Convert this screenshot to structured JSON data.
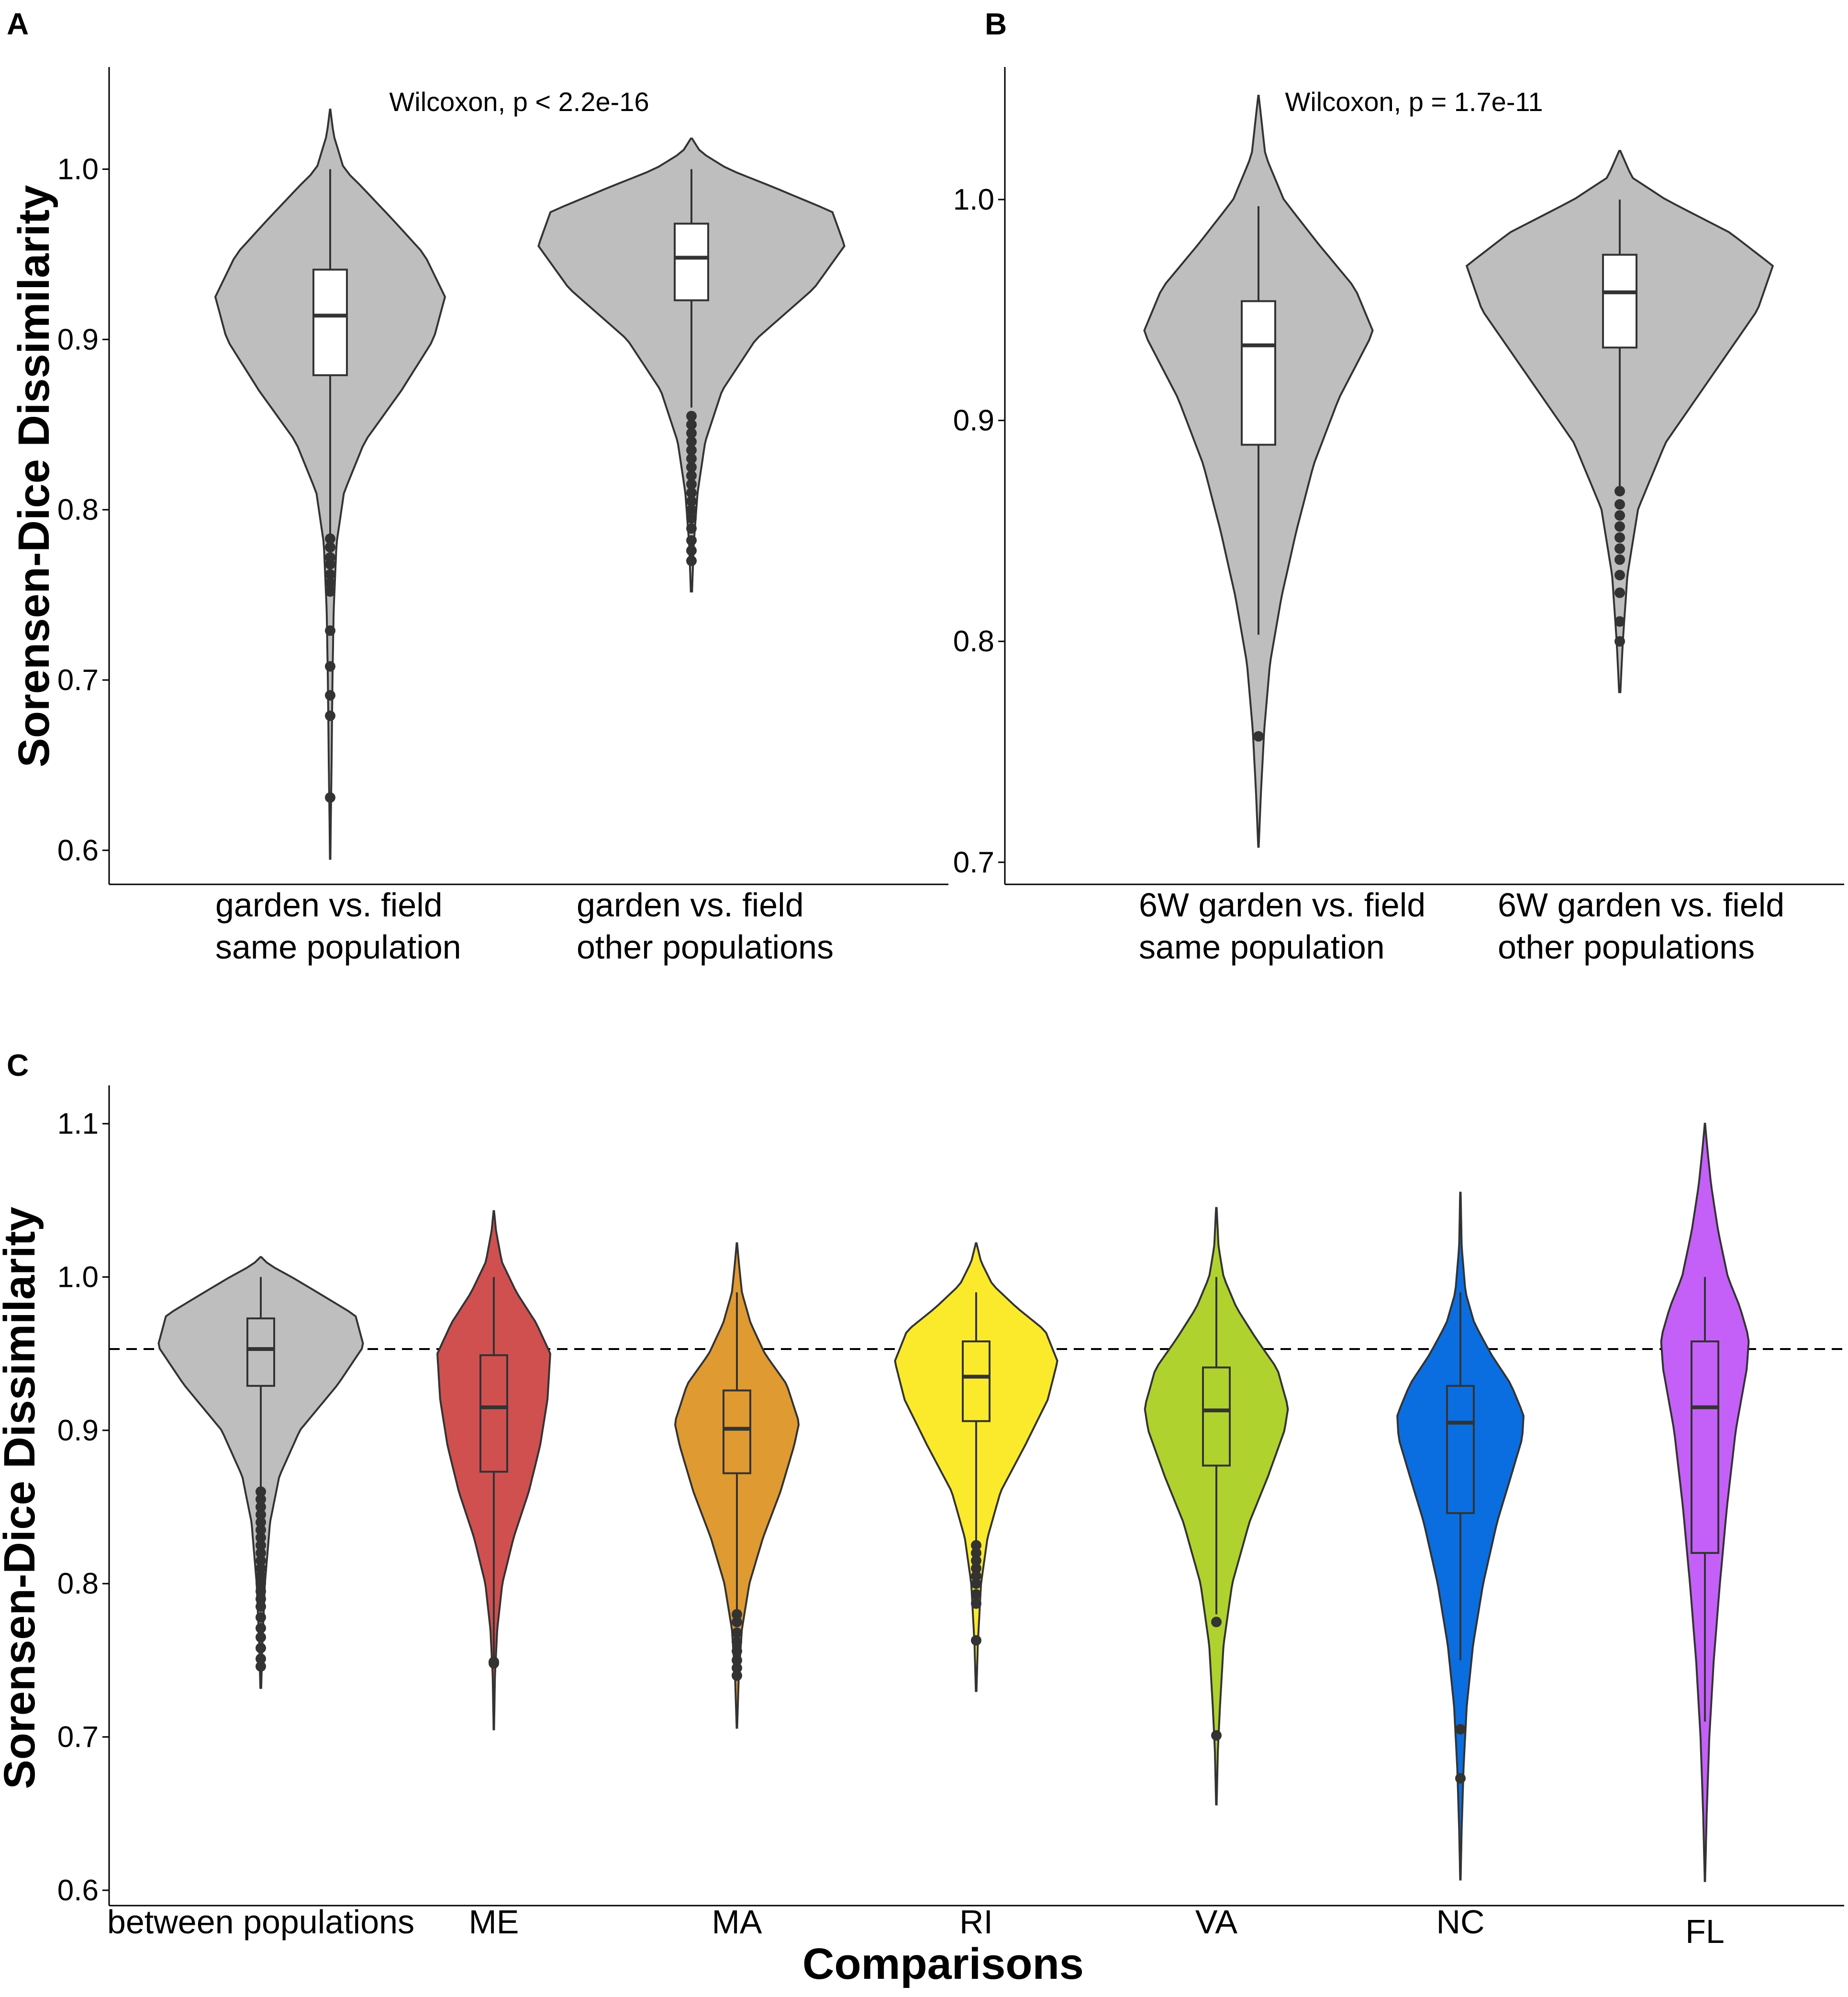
{
  "colors": {
    "violin_default": "#bebebe",
    "outline": "#333333",
    "box_fill": "#ffffff",
    "ME": "#d05050",
    "MA": "#e09a32",
    "RI": "#fbea2c",
    "VA": "#b0d22e",
    "NC": "#0a6ee0",
    "FL": "#c460f8"
  },
  "chart_data": [
    {
      "panel": "A",
      "type": "violin",
      "ylabel": "Sorensen-Dice Dissimilarity",
      "xlabel": "",
      "ylim": [
        0.58,
        1.06
      ],
      "yticks": [
        "0.6",
        "0.7",
        "0.8",
        "0.9",
        "1.0"
      ],
      "annotation": "Wilcoxon, p < 2.2e-16",
      "groups": [
        {
          "label_lines": [
            "garden vs. field",
            "same population"
          ],
          "color": "violin_default",
          "min": 0.595,
          "max": 1.035,
          "whisker_low": 0.785,
          "whisker_high": 1.0,
          "q1": 0.879,
          "median": 0.914,
          "q3": 0.941,
          "outliers": [
            0.783,
            0.778,
            0.772,
            0.768,
            0.762,
            0.757,
            0.752,
            0.729,
            0.708,
            0.691,
            0.679,
            0.631
          ],
          "profile": [
            [
              0.595,
              0.002
            ],
            [
              0.62,
              0.006
            ],
            [
              0.65,
              0.012
            ],
            [
              0.7,
              0.02
            ],
            [
              0.74,
              0.03
            ],
            [
              0.78,
              0.055
            ],
            [
              0.81,
              0.12
            ],
            [
              0.84,
              0.3
            ],
            [
              0.87,
              0.62
            ],
            [
              0.9,
              0.9
            ],
            [
              0.925,
              1.0
            ],
            [
              0.95,
              0.82
            ],
            [
              0.97,
              0.55
            ],
            [
              0.99,
              0.27
            ],
            [
              1.0,
              0.12
            ],
            [
              1.02,
              0.03
            ],
            [
              1.035,
              0.002
            ]
          ]
        },
        {
          "label_lines": [
            "garden vs. field",
            "other populations"
          ],
          "color": "violin_default",
          "min": 0.752,
          "max": 1.018,
          "whisker_low": 0.86,
          "whisker_high": 1.0,
          "q1": 0.923,
          "median": 0.948,
          "q3": 0.968,
          "outliers": [
            0.855,
            0.85,
            0.845,
            0.84,
            0.835,
            0.83,
            0.825,
            0.82,
            0.815,
            0.81,
            0.805,
            0.8,
            0.795,
            0.789,
            0.782,
            0.776,
            0.77
          ],
          "profile": [
            [
              0.752,
              0.004
            ],
            [
              0.78,
              0.015
            ],
            [
              0.81,
              0.04
            ],
            [
              0.84,
              0.09
            ],
            [
              0.87,
              0.2
            ],
            [
              0.9,
              0.42
            ],
            [
              0.93,
              0.8
            ],
            [
              0.955,
              1.0
            ],
            [
              0.975,
              0.92
            ],
            [
              0.99,
              0.52
            ],
            [
              1.0,
              0.24
            ],
            [
              1.01,
              0.06
            ],
            [
              1.018,
              0.004
            ]
          ]
        }
      ]
    },
    {
      "panel": "B",
      "type": "violin",
      "ylabel": "",
      "xlabel": "",
      "ylim": [
        0.69,
        1.06
      ],
      "yticks": [
        "0.7",
        "0.8",
        "0.9",
        "1.0"
      ],
      "annotation": "Wilcoxon, p = 1.7e-11",
      "groups": [
        {
          "label_lines": [
            "6W garden vs. field",
            "same population"
          ],
          "color": "violin_default",
          "min": 0.707,
          "max": 1.047,
          "whisker_low": 0.803,
          "whisker_high": 0.997,
          "q1": 0.889,
          "median": 0.934,
          "q3": 0.954,
          "outliers": [
            0.757
          ],
          "profile": [
            [
              0.707,
              0.002
            ],
            [
              0.73,
              0.02
            ],
            [
              0.76,
              0.05
            ],
            [
              0.79,
              0.1
            ],
            [
              0.82,
              0.2
            ],
            [
              0.85,
              0.33
            ],
            [
              0.88,
              0.48
            ],
            [
              0.91,
              0.7
            ],
            [
              0.94,
              1.0
            ],
            [
              0.96,
              0.84
            ],
            [
              0.98,
              0.52
            ],
            [
              1.0,
              0.22
            ],
            [
              1.02,
              0.06
            ],
            [
              1.047,
              0.002
            ]
          ]
        },
        {
          "label_lines": [
            "6W garden vs. field",
            "other populations"
          ],
          "color": "violin_default",
          "min": 0.777,
          "max": 1.022,
          "whisker_low": 0.87,
          "whisker_high": 1.0,
          "q1": 0.933,
          "median": 0.958,
          "q3": 0.975,
          "outliers": [
            0.868,
            0.862,
            0.857,
            0.852,
            0.847,
            0.842,
            0.837,
            0.83,
            0.822,
            0.809,
            0.8
          ],
          "profile": [
            [
              0.777,
              0.004
            ],
            [
              0.8,
              0.02
            ],
            [
              0.83,
              0.05
            ],
            [
              0.86,
              0.12
            ],
            [
              0.89,
              0.3
            ],
            [
              0.92,
              0.6
            ],
            [
              0.95,
              0.9
            ],
            [
              0.97,
              1.0
            ],
            [
              0.985,
              0.72
            ],
            [
              1.0,
              0.3
            ],
            [
              1.01,
              0.08
            ],
            [
              1.022,
              0.004
            ]
          ]
        }
      ]
    },
    {
      "panel": "C",
      "type": "violin",
      "ylabel": "Sorensen-Dice Dissimilarity",
      "xlabel": "Comparisons",
      "ylim": [
        0.59,
        1.125
      ],
      "yticks": [
        "0.6",
        "0.7",
        "0.8",
        "0.9",
        "1.0",
        "1.1"
      ],
      "reference_line": 0.953,
      "groups": [
        {
          "label_lines": [
            "between populations"
          ],
          "color": "violin_default",
          "min": 0.732,
          "max": 1.013,
          "whisker_low": 0.862,
          "whisker_high": 1.0,
          "q1": 0.929,
          "median": 0.953,
          "q3": 0.973,
          "outliers": [
            0.86,
            0.855,
            0.85,
            0.845,
            0.84,
            0.835,
            0.83,
            0.825,
            0.82,
            0.815,
            0.81,
            0.805,
            0.8,
            0.795,
            0.79,
            0.785,
            0.778,
            0.771,
            0.765,
            0.758,
            0.751,
            0.746
          ],
          "profile": [
            [
              0.732,
              0.004
            ],
            [
              0.76,
              0.015
            ],
            [
              0.8,
              0.04
            ],
            [
              0.84,
              0.09
            ],
            [
              0.87,
              0.18
            ],
            [
              0.9,
              0.38
            ],
            [
              0.93,
              0.75
            ],
            [
              0.955,
              1.0
            ],
            [
              0.975,
              0.92
            ],
            [
              0.99,
              0.55
            ],
            [
              1.0,
              0.3
            ],
            [
              1.008,
              0.08
            ],
            [
              1.013,
              0.004
            ]
          ]
        },
        {
          "label_lines": [
            "ME"
          ],
          "color": "ME",
          "min": 0.705,
          "max": 1.043,
          "whisker_low": 0.75,
          "whisker_high": 1.0,
          "q1": 0.873,
          "median": 0.915,
          "q3": 0.949,
          "outliers": [
            0.749,
            0.748
          ],
          "profile": [
            [
              0.705,
              0.004
            ],
            [
              0.74,
              0.02
            ],
            [
              0.77,
              0.06
            ],
            [
              0.8,
              0.15
            ],
            [
              0.83,
              0.35
            ],
            [
              0.86,
              0.62
            ],
            [
              0.89,
              0.82
            ],
            [
              0.92,
              0.95
            ],
            [
              0.95,
              1.0
            ],
            [
              0.97,
              0.75
            ],
            [
              0.99,
              0.4
            ],
            [
              1.01,
              0.14
            ],
            [
              1.03,
              0.04
            ],
            [
              1.043,
              0.004
            ]
          ]
        },
        {
          "label_lines": [
            "MA"
          ],
          "color": "MA",
          "min": 0.706,
          "max": 1.022,
          "whisker_low": 0.78,
          "whisker_high": 0.99,
          "q1": 0.872,
          "median": 0.901,
          "q3": 0.926,
          "outliers": [
            0.78,
            0.775,
            0.768,
            0.762,
            0.756,
            0.75,
            0.745,
            0.74
          ],
          "profile": [
            [
              0.706,
              0.004
            ],
            [
              0.74,
              0.03
            ],
            [
              0.77,
              0.08
            ],
            [
              0.8,
              0.2
            ],
            [
              0.83,
              0.42
            ],
            [
              0.86,
              0.7
            ],
            [
              0.89,
              0.92
            ],
            [
              0.905,
              1.0
            ],
            [
              0.93,
              0.8
            ],
            [
              0.95,
              0.45
            ],
            [
              0.97,
              0.22
            ],
            [
              0.99,
              0.08
            ],
            [
              1.01,
              0.03
            ],
            [
              1.022,
              0.004
            ]
          ]
        },
        {
          "label_lines": [
            "RI"
          ],
          "color": "RI",
          "min": 0.73,
          "max": 1.022,
          "whisker_low": 0.825,
          "whisker_high": 0.99,
          "q1": 0.906,
          "median": 0.935,
          "q3": 0.958,
          "outliers": [
            0.825,
            0.82,
            0.815,
            0.81,
            0.805,
            0.8,
            0.793,
            0.787,
            0.763
          ],
          "profile": [
            [
              0.73,
              0.004
            ],
            [
              0.76,
              0.02
            ],
            [
              0.8,
              0.06
            ],
            [
              0.83,
              0.14
            ],
            [
              0.86,
              0.3
            ],
            [
              0.89,
              0.6
            ],
            [
              0.92,
              0.88
            ],
            [
              0.945,
              1.0
            ],
            [
              0.965,
              0.85
            ],
            [
              0.98,
              0.5
            ],
            [
              0.995,
              0.2
            ],
            [
              1.01,
              0.06
            ],
            [
              1.022,
              0.004
            ]
          ]
        },
        {
          "label_lines": [
            "VA"
          ],
          "color": "VA",
          "min": 0.656,
          "max": 1.045,
          "whisker_low": 0.78,
          "whisker_high": 1.0,
          "q1": 0.877,
          "median": 0.913,
          "q3": 0.941,
          "outliers": [
            0.775,
            0.701
          ],
          "profile": [
            [
              0.656,
              0.004
            ],
            [
              0.69,
              0.02
            ],
            [
              0.72,
              0.05
            ],
            [
              0.76,
              0.1
            ],
            [
              0.8,
              0.22
            ],
            [
              0.84,
              0.46
            ],
            [
              0.87,
              0.72
            ],
            [
              0.9,
              0.95
            ],
            [
              0.915,
              1.0
            ],
            [
              0.94,
              0.85
            ],
            [
              0.96,
              0.55
            ],
            [
              0.98,
              0.28
            ],
            [
              1.0,
              0.1
            ],
            [
              1.02,
              0.03
            ],
            [
              1.045,
              0.004
            ]
          ]
        },
        {
          "label_lines": [
            "NC"
          ],
          "color": "NC",
          "min": 0.607,
          "max": 1.055,
          "whisker_low": 0.75,
          "whisker_high": 0.99,
          "q1": 0.846,
          "median": 0.905,
          "q3": 0.929,
          "outliers": [
            0.705,
            0.673
          ],
          "profile": [
            [
              0.607,
              0.004
            ],
            [
              0.64,
              0.02
            ],
            [
              0.68,
              0.05
            ],
            [
              0.72,
              0.1
            ],
            [
              0.76,
              0.2
            ],
            [
              0.8,
              0.36
            ],
            [
              0.84,
              0.58
            ],
            [
              0.87,
              0.8
            ],
            [
              0.895,
              0.98
            ],
            [
              0.91,
              1.0
            ],
            [
              0.93,
              0.8
            ],
            [
              0.95,
              0.48
            ],
            [
              0.97,
              0.22
            ],
            [
              0.99,
              0.08
            ],
            [
              1.02,
              0.02
            ],
            [
              1.055,
              0.004
            ]
          ]
        },
        {
          "label_lines": [
            "FL"
          ],
          "color": "FL",
          "min": 0.606,
          "max": 1.1,
          "whisker_low": 0.71,
          "whisker_high": 1.0,
          "q1": 0.82,
          "median": 0.915,
          "q3": 0.958,
          "outliers": [],
          "profile": [
            [
              0.606,
              0.004
            ],
            [
              0.65,
              0.04
            ],
            [
              0.7,
              0.1
            ],
            [
              0.75,
              0.2
            ],
            [
              0.8,
              0.34
            ],
            [
              0.85,
              0.5
            ],
            [
              0.9,
              0.7
            ],
            [
              0.94,
              0.95
            ],
            [
              0.96,
              1.0
            ],
            [
              0.98,
              0.8
            ],
            [
              1.0,
              0.52
            ],
            [
              1.03,
              0.3
            ],
            [
              1.06,
              0.14
            ],
            [
              1.085,
              0.05
            ],
            [
              1.1,
              0.004
            ]
          ]
        }
      ]
    }
  ]
}
